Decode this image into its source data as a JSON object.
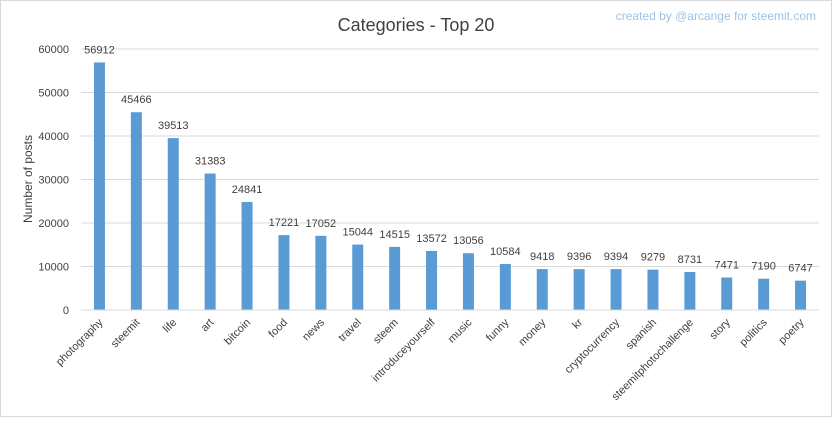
{
  "credit": "created by @arcange for steemit.com",
  "colors": {
    "bar": "#5b9bd5",
    "grid": "#d9d9d9",
    "text": "#404040",
    "credit": "#9dc3e6"
  },
  "chart_data": {
    "type": "bar",
    "title": "Categories - Top 20",
    "xlabel": "",
    "ylabel": "Number of posts",
    "ylim": [
      0,
      60000
    ],
    "yticks": [
      0,
      10000,
      20000,
      30000,
      40000,
      50000,
      60000
    ],
    "grid": true,
    "legend": "none",
    "categories": [
      "photography",
      "steemit",
      "life",
      "art",
      "bitcoin",
      "food",
      "news",
      "travel",
      "steem",
      "introduceyourself",
      "music",
      "funny",
      "money",
      "kr",
      "cryptocurrency",
      "spanish",
      "steemitphotochallenge",
      "story",
      "politics",
      "poetry"
    ],
    "values": [
      56912,
      45466,
      39513,
      31383,
      24841,
      17221,
      17052,
      15044,
      14515,
      13572,
      13056,
      10584,
      9418,
      9396,
      9394,
      9279,
      8731,
      7471,
      7190,
      6747
    ]
  }
}
